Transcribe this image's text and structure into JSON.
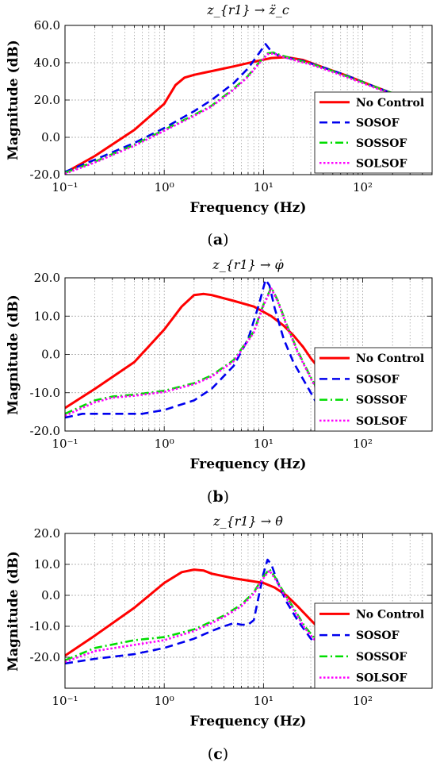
{
  "chart_data": [
    {
      "type": "line",
      "title": "z_{r1} → z̈_c",
      "caption_letter": "a",
      "xlabel": "Frequency (Hz)",
      "ylabel": "Magnitude (dB)",
      "xscale": "log",
      "xlim": [
        0.1,
        500
      ],
      "ylim": [
        -20,
        60
      ],
      "yticks": [
        "-20.0",
        "0.0",
        "20.0",
        "40.0",
        "60.0"
      ],
      "xticks": [
        "10⁻¹",
        "10⁰",
        "10¹",
        "10²"
      ],
      "grid": true,
      "legend_position": "lower-right",
      "series": [
        {
          "name": "No Control",
          "color": "#ff0000",
          "dash": "solid",
          "x": [
            0.1,
            0.2,
            0.5,
            1.0,
            1.3,
            1.6,
            2.0,
            3.0,
            5.0,
            8.0,
            12.0,
            17.0,
            25.0,
            40.0,
            70.0,
            120.0,
            200.0,
            350.0,
            500.0
          ],
          "y": [
            -19,
            -10,
            4,
            18,
            28,
            32,
            33.5,
            35.5,
            38,
            40.5,
            42.5,
            43,
            41.5,
            37.5,
            33,
            28,
            23.5,
            19.5,
            17
          ]
        },
        {
          "name": "SOSOF",
          "color": "#0000ee",
          "dash": "10 6",
          "x": [
            0.1,
            0.2,
            0.5,
            1.0,
            2.0,
            3.0,
            5.0,
            7.0,
            9.0,
            10.5,
            12.0,
            14.0,
            18.0,
            25.0,
            40.0,
            70.0,
            120.0,
            200.0,
            350.0,
            500.0
          ],
          "y": [
            -18.5,
            -12,
            -3,
            5,
            14,
            20,
            29,
            37,
            45,
            50,
            46,
            44,
            42.5,
            41,
            37.5,
            33,
            28,
            23.5,
            19.5,
            17
          ]
        },
        {
          "name": "SOSSOF",
          "color": "#00dd00",
          "dash": "10 4 2 4",
          "x": [
            0.1,
            0.2,
            0.5,
            1.0,
            2.0,
            3.0,
            5.0,
            7.0,
            9.0,
            11.0,
            12.5,
            15.0,
            20.0,
            30.0,
            50.0,
            80.0,
            150.0,
            300.0,
            500.0
          ],
          "y": [
            -19,
            -13,
            -4,
            4,
            12,
            17,
            26,
            33,
            40,
            45,
            45.5,
            44,
            42,
            39.5,
            35.5,
            31.5,
            26,
            20.5,
            17
          ]
        },
        {
          "name": "SOLSOF",
          "color": "#ff00ff",
          "dash": "2.5 2.5",
          "x": [
            0.1,
            0.2,
            0.5,
            1.0,
            2.0,
            3.0,
            5.0,
            7.0,
            9.0,
            11.0,
            12.5,
            15.0,
            20.0,
            30.0,
            50.0,
            80.0,
            150.0,
            300.0,
            500.0
          ],
          "y": [
            -19.5,
            -13.5,
            -4.5,
            3.5,
            11.5,
            16.5,
            25.5,
            32.5,
            39.5,
            44.5,
            45,
            43.5,
            41.5,
            39,
            35,
            31,
            25.5,
            20,
            16.5
          ]
        }
      ]
    },
    {
      "type": "line",
      "title": "z_{r1} → φ̇",
      "caption_letter": "b",
      "xlabel": "Frequency (Hz)",
      "ylabel": "Magnitude (dB)",
      "xscale": "log",
      "xlim": [
        0.1,
        500
      ],
      "ylim": [
        -20,
        20
      ],
      "yticks": [
        "-20.0",
        "-10.0",
        "0.0",
        "10.0",
        "20.0"
      ],
      "xticks": [
        "10⁻¹",
        "10⁰",
        "10¹",
        "10²"
      ],
      "grid": true,
      "legend_position": "lower-right",
      "series": [
        {
          "name": "No Control",
          "color": "#ff0000",
          "dash": "solid",
          "x": [
            0.1,
            0.2,
            0.5,
            1.0,
            1.5,
            2.0,
            2.5,
            3.0,
            5.0,
            8.0,
            12.0,
            16.0,
            20.0,
            25.0,
            30.0,
            40.0
          ],
          "y": [
            -14,
            -9,
            -2,
            6.5,
            12.5,
            15.5,
            15.8,
            15.5,
            14,
            12.5,
            10,
            7.5,
            5,
            2,
            -1,
            -5
          ]
        },
        {
          "name": "SOSOF",
          "color": "#0000ee",
          "dash": "10 6",
          "x": [
            0.1,
            0.15,
            0.3,
            0.6,
            1.0,
            2.0,
            3.0,
            5.0,
            7.0,
            9.0,
            10.5,
            11.5,
            13.0,
            16.0,
            20.0,
            30.0,
            40.0
          ],
          "y": [
            -16.5,
            -15.5,
            -15.5,
            -15.5,
            -14.5,
            -12,
            -9,
            -3,
            4,
            13,
            19.5,
            18,
            12,
            4,
            -2,
            -10,
            -16
          ]
        },
        {
          "name": "SOSSOF",
          "color": "#00dd00",
          "dash": "10 4 2 4",
          "x": [
            0.1,
            0.2,
            0.3,
            0.5,
            1.0,
            2.0,
            3.0,
            5.0,
            8.0,
            10.0,
            12.0,
            14.0,
            17.0,
            22.0,
            30.0,
            40.0
          ],
          "y": [
            -15.5,
            -12,
            -11,
            -10.5,
            -9.5,
            -7.5,
            -5.5,
            -1.5,
            6,
            13,
            17.5,
            14,
            8,
            1,
            -6,
            -12
          ]
        },
        {
          "name": "SOLSOF",
          "color": "#ff00ff",
          "dash": "2.5 2.5",
          "x": [
            0.1,
            0.2,
            0.3,
            0.5,
            1.0,
            2.0,
            3.0,
            5.0,
            8.0,
            10.0,
            12.0,
            14.0,
            17.0,
            22.0,
            30.0,
            40.0
          ],
          "y": [
            -16,
            -12.5,
            -11.3,
            -10.8,
            -9.8,
            -7.8,
            -5.8,
            -1.8,
            5.7,
            12.7,
            17.2,
            13.7,
            7.7,
            0.7,
            -6.3,
            -12.3
          ]
        }
      ]
    },
    {
      "type": "line",
      "title": "z_{r1} → θ̇",
      "caption_letter": "c",
      "xlabel": "Frequency (Hz)",
      "ylabel": "Magnitude (dB)",
      "xscale": "log",
      "xlim": [
        0.1,
        500
      ],
      "ylim": [
        -30,
        20
      ],
      "yticks": [
        "-20.0",
        "-10.0",
        "0.0",
        "10.0",
        "20.0"
      ],
      "xticks": [
        "10⁻¹",
        "10⁰",
        "10¹",
        "10²"
      ],
      "grid": true,
      "legend_position": "lower-right",
      "series": [
        {
          "name": "No Control",
          "color": "#ff0000",
          "dash": "solid",
          "x": [
            0.1,
            0.2,
            0.5,
            1.0,
            1.5,
            2.0,
            2.5,
            3.0,
            5.0,
            8.0,
            10.0,
            13.0,
            17.0,
            22.0,
            30.0,
            40.0
          ],
          "y": [
            -19.5,
            -13,
            -4,
            4,
            7.5,
            8.3,
            8,
            7,
            5.5,
            4.5,
            4,
            2.5,
            0,
            -3.5,
            -8,
            -12
          ]
        },
        {
          "name": "SOSOF",
          "color": "#0000ee",
          "dash": "10 6",
          "x": [
            0.1,
            0.2,
            0.5,
            1.0,
            2.0,
            3.0,
            4.0,
            5.0,
            6.0,
            7.0,
            8.0,
            9.0,
            10.0,
            11.0,
            12.0,
            14.0,
            17.0,
            22.0,
            30.0,
            40.0
          ],
          "y": [
            -22,
            -20.5,
            -19,
            -17,
            -14,
            -11.5,
            -10,
            -9,
            -9.5,
            -9.5,
            -8,
            0,
            7,
            11.5,
            10,
            4,
            -2,
            -8,
            -14,
            -18
          ]
        },
        {
          "name": "SOSSOF",
          "color": "#00dd00",
          "dash": "10 4 2 4",
          "x": [
            0.1,
            0.2,
            0.5,
            1.0,
            2.0,
            3.0,
            4.0,
            6.0,
            8.0,
            10.0,
            11.5,
            13.0,
            16.0,
            20.0,
            26.0,
            35.0
          ],
          "y": [
            -21,
            -17,
            -14.5,
            -13.5,
            -11,
            -8.5,
            -6.5,
            -3,
            1,
            6,
            8.5,
            6,
            1,
            -4,
            -10,
            -15
          ]
        },
        {
          "name": "SOLSOF",
          "color": "#ff00ff",
          "dash": "2.5 2.5",
          "x": [
            0.1,
            0.2,
            0.5,
            1.0,
            2.0,
            3.0,
            4.0,
            6.0,
            8.0,
            10.0,
            11.5,
            13.0,
            16.0,
            20.0,
            26.0,
            35.0
          ],
          "y": [
            -21.5,
            -18,
            -16,
            -14.5,
            -11.5,
            -9,
            -7,
            -3.5,
            0.5,
            5.5,
            8,
            5.5,
            0.5,
            -4.5,
            -10.5,
            -15.5
          ]
        }
      ]
    }
  ]
}
